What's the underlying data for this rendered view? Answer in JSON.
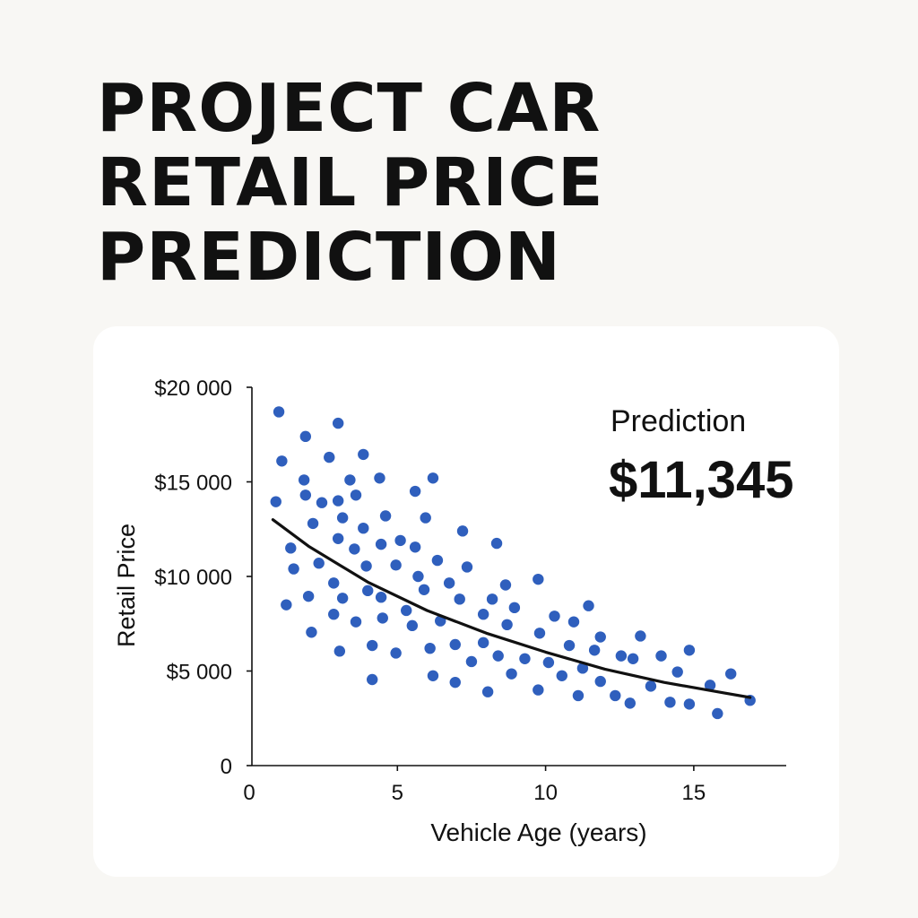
{
  "title_lines": [
    "PROJECT CAR",
    "RETAIL PRICE",
    "PREDICTION"
  ],
  "colors": {
    "background": "#f8f7f4",
    "card": "#ffffff",
    "points": "#2f5fbd",
    "trend_line": "#111111"
  },
  "prediction": {
    "label": "Prediction",
    "value": "$11,345"
  },
  "chart_data": {
    "type": "scatter",
    "xlabel": "Vehicle Age (years)",
    "ylabel": "Retail Price",
    "xlim": [
      0,
      18
    ],
    "ylim": [
      0,
      20000
    ],
    "x_ticks": [
      0,
      5,
      10,
      15
    ],
    "x_tick_labels": [
      "0",
      "5",
      "10",
      "15"
    ],
    "y_ticks": [
      0,
      5000,
      10000,
      15000,
      20000
    ],
    "y_tick_labels": [
      "0",
      "$5 000",
      "$10 000",
      "$15 000",
      "$20 000"
    ],
    "grid": false,
    "points": [
      [
        1.0,
        18700
      ],
      [
        1.1,
        16100
      ],
      [
        0.9,
        13950
      ],
      [
        1.4,
        11500
      ],
      [
        1.5,
        10400
      ],
      [
        1.25,
        8500
      ],
      [
        1.9,
        17400
      ],
      [
        1.85,
        15100
      ],
      [
        1.9,
        14300
      ],
      [
        2.15,
        12800
      ],
      [
        2.0,
        8950
      ],
      [
        2.1,
        7050
      ],
      [
        2.35,
        10700
      ],
      [
        2.45,
        13900
      ],
      [
        2.7,
        16300
      ],
      [
        2.85,
        9650
      ],
      [
        2.85,
        8000
      ],
      [
        3.0,
        18100
      ],
      [
        3.0,
        14000
      ],
      [
        3.0,
        12000
      ],
      [
        3.15,
        13100
      ],
      [
        3.15,
        8850
      ],
      [
        3.05,
        6050
      ],
      [
        3.4,
        15100
      ],
      [
        3.55,
        11450
      ],
      [
        3.6,
        14300
      ],
      [
        3.6,
        7600
      ],
      [
        3.85,
        16450
      ],
      [
        3.85,
        12550
      ],
      [
        3.95,
        10550
      ],
      [
        4.0,
        9250
      ],
      [
        4.15,
        6350
      ],
      [
        4.15,
        4550
      ],
      [
        4.4,
        15200
      ],
      [
        4.45,
        11700
      ],
      [
        4.45,
        8900
      ],
      [
        4.5,
        7800
      ],
      [
        4.6,
        13200
      ],
      [
        4.95,
        10600
      ],
      [
        4.95,
        5950
      ],
      [
        5.1,
        11900
      ],
      [
        5.3,
        8200
      ],
      [
        5.5,
        7400
      ],
      [
        5.6,
        11550
      ],
      [
        5.6,
        14500
      ],
      [
        5.7,
        10000
      ],
      [
        5.95,
        13100
      ],
      [
        5.9,
        9300
      ],
      [
        6.1,
        6200
      ],
      [
        6.2,
        4750
      ],
      [
        6.2,
        15200
      ],
      [
        6.35,
        10850
      ],
      [
        6.45,
        7650
      ],
      [
        6.75,
        9650
      ],
      [
        6.95,
        6400
      ],
      [
        6.95,
        4400
      ],
      [
        7.1,
        8800
      ],
      [
        7.2,
        12400
      ],
      [
        7.35,
        10500
      ],
      [
        7.5,
        5500
      ],
      [
        7.9,
        8000
      ],
      [
        7.9,
        6500
      ],
      [
        8.05,
        3900
      ],
      [
        8.2,
        8800
      ],
      [
        8.35,
        11750
      ],
      [
        8.4,
        5800
      ],
      [
        8.65,
        9550
      ],
      [
        8.7,
        7450
      ],
      [
        8.85,
        4850
      ],
      [
        8.95,
        8350
      ],
      [
        9.3,
        5650
      ],
      [
        9.75,
        9850
      ],
      [
        9.8,
        7000
      ],
      [
        9.75,
        4000
      ],
      [
        10.1,
        5450
      ],
      [
        10.3,
        7900
      ],
      [
        10.55,
        4750
      ],
      [
        10.8,
        6350
      ],
      [
        10.95,
        7600
      ],
      [
        11.1,
        3700
      ],
      [
        11.25,
        5150
      ],
      [
        11.45,
        8450
      ],
      [
        11.65,
        6100
      ],
      [
        11.85,
        6800
      ],
      [
        11.85,
        4450
      ],
      [
        12.35,
        3700
      ],
      [
        12.55,
        5800
      ],
      [
        12.85,
        3300
      ],
      [
        12.95,
        5650
      ],
      [
        13.2,
        6850
      ],
      [
        13.55,
        4200
      ],
      [
        13.9,
        5800
      ],
      [
        14.2,
        3350
      ],
      [
        14.45,
        4950
      ],
      [
        14.85,
        6100
      ],
      [
        14.85,
        3250
      ],
      [
        15.55,
        4250
      ],
      [
        15.8,
        2750
      ],
      [
        16.25,
        4850
      ],
      [
        16.9,
        3450
      ]
    ],
    "trend_line": [
      [
        0.8,
        13000
      ],
      [
        2.0,
        11600
      ],
      [
        4.0,
        9700
      ],
      [
        6.0,
        8200
      ],
      [
        8.0,
        7000
      ],
      [
        10.0,
        6000
      ],
      [
        12.0,
        5100
      ],
      [
        14.0,
        4400
      ],
      [
        16.0,
        3850
      ],
      [
        16.9,
        3600
      ]
    ]
  }
}
